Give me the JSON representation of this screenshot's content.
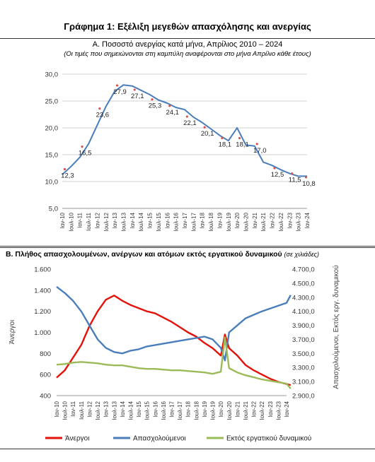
{
  "title": "Γράφημα 1: Εξέλιξη μεγεθών απασχόλησης και ανεργίας",
  "chart_data": [
    {
      "type": "line",
      "title": "Α. Ποσοστό ανεργίας κατά μήνα, Απρίλιος 2010 – 2024",
      "subtitle": "(Οι τιμές που σημειώνονται στη καμπύλη αναφέρονται στο μήνα Απρίλιο κάθε έτους)",
      "ylim": [
        5,
        30
      ],
      "yticks": [
        "5,0",
        "10,0",
        "15,0",
        "20,0",
        "25,0",
        "30,0"
      ],
      "grid": true,
      "x_categories": [
        "Ιαν-10",
        "Ιουλ-10",
        "Ιαν-11",
        "Ιουλ-11",
        "Ιαν-12",
        "Ιουλ-12",
        "Ιαν-13",
        "Ιουλ-13",
        "Ιαν-14",
        "Ιουλ-14",
        "Ιαν-15",
        "Ιουλ-15",
        "Ιαν-16",
        "Ιουλ-16",
        "Ιαν-17",
        "Ιουλ-17",
        "Ιαν-18",
        "Ιουλ-18",
        "Ιαν-19",
        "Ιουλ-19",
        "Ιαν-20",
        "Ιουλ-20",
        "Ιαν-21",
        "Ιουλ-21",
        "Ιαν-22",
        "Ιουλ-22",
        "Ιαν-23",
        "Ιουλ-23",
        "Ιαν-24"
      ],
      "series": [
        {
          "color": "#4a7ebb",
          "x": [
            0,
            1,
            2,
            3,
            4,
            5,
            6,
            7,
            8,
            9,
            10,
            11,
            12,
            13,
            14,
            15,
            16,
            17,
            18,
            19,
            20,
            21,
            22,
            23,
            24,
            25,
            26,
            27,
            28
          ],
          "values": [
            11.3,
            12.8,
            14.5,
            17.0,
            20.5,
            24.0,
            26.8,
            28.0,
            27.8,
            27.0,
            26.2,
            25.2,
            24.6,
            23.8,
            23.4,
            22.0,
            21.0,
            19.8,
            18.6,
            17.6,
            20.0,
            16.8,
            16.6,
            13.6,
            13.0,
            12.2,
            11.5,
            11.0,
            11.0
          ]
        }
      ],
      "labels": [
        {
          "x": 0.6,
          "value": 12.3,
          "text": "12,3"
        },
        {
          "x": 2.6,
          "value": 16.5,
          "text": "16,5"
        },
        {
          "x": 4.6,
          "value": 23.6,
          "text": "23,6"
        },
        {
          "x": 6.6,
          "value": 27.9,
          "text": "27,9"
        },
        {
          "x": 8.6,
          "value": 27.1,
          "text": "27,1"
        },
        {
          "x": 10.6,
          "value": 25.3,
          "text": "25,3"
        },
        {
          "x": 12.6,
          "value": 24.1,
          "text": "24,1"
        },
        {
          "x": 14.6,
          "value": 22.1,
          "text": "22,1"
        },
        {
          "x": 16.6,
          "value": 20.1,
          "text": "20,1"
        },
        {
          "x": 18.6,
          "value": 18.1,
          "text": "18,1"
        },
        {
          "x": 20.6,
          "value": 18.1,
          "text": "18,1"
        },
        {
          "x": 22.6,
          "value": 17.0,
          "text": "17,0"
        },
        {
          "x": 24.6,
          "value": 12.5,
          "text": "12,5"
        },
        {
          "x": 26.6,
          "value": 11.5,
          "text": "11,5"
        },
        {
          "x": 28.2,
          "value": 10.8,
          "text": "10,8"
        }
      ]
    },
    {
      "type": "line",
      "title": "Β. Πλήθος απασχολουμένων, ανέργων και ατόμων εκτός εργατικού δυναμικού",
      "unit_note": "(σε χιλιάδες)",
      "ylabel_left": "Άνεργοι",
      "ylabel_right": "Απασχολούμενοι, Εκτός εργ. δυναμικού",
      "ylim_left": [
        400,
        1600
      ],
      "yticks_left": [
        "400",
        "600",
        "800",
        "1.000",
        "1.200",
        "1.400",
        "1.600"
      ],
      "ylim_right": [
        2900,
        4700
      ],
      "yticks_right": [
        "2.900,0",
        "3.100,0",
        "3.300,0",
        "3.500,0",
        "3.700,0",
        "3.900,0",
        "4.100,0",
        "4.300,0",
        "4.500,0",
        "4.700,0"
      ],
      "x_categories": [
        "Ιαν-10",
        "Ιουλ-10",
        "Ιαν-11",
        "Ιουλ-11",
        "Ιαν-12",
        "Ιουλ-12",
        "Ιαν-13",
        "Ιουλ-13",
        "Ιαν-14",
        "Ιουλ-14",
        "Ιαν-15",
        "Ιουλ-15",
        "Ιαν-16",
        "Ιουλ-16",
        "Ιαν-17",
        "Ιουλ-17",
        "Ιαν-18",
        "Ιουλ-18",
        "Ιαν-19",
        "Ιουλ-19",
        "Ιαν-20",
        "Ιουλ-20",
        "Ιαν-21",
        "Ιουλ-21",
        "Ιαν-22",
        "Ιουλ-22",
        "Ιαν-23",
        "Ιουλ-23",
        "Ιαν-24"
      ],
      "series": [
        {
          "name": "Άνεργοι",
          "color": "#e3120b",
          "axis": "left",
          "x": [
            0,
            1,
            2,
            3,
            4,
            5,
            6,
            7,
            8,
            9,
            10,
            11,
            12,
            13,
            14,
            15,
            16,
            17,
            18,
            19,
            20,
            20.5,
            21,
            22,
            23,
            24,
            25,
            26,
            27,
            28,
            28.5
          ],
          "values": [
            570,
            640,
            760,
            880,
            1060,
            1200,
            1310,
            1350,
            1300,
            1260,
            1230,
            1200,
            1180,
            1140,
            1100,
            1050,
            1000,
            960,
            900,
            850,
            780,
            980,
            850,
            780,
            690,
            640,
            600,
            560,
            530,
            510,
            500
          ]
        },
        {
          "name": "Απασχολούμενοι",
          "color": "#4a7ebb",
          "axis": "right",
          "x": [
            0,
            1,
            2,
            3,
            4,
            5,
            6,
            7,
            8,
            9,
            10,
            11,
            12,
            13,
            14,
            15,
            16,
            17,
            18,
            19,
            20,
            20.5,
            21,
            22,
            23,
            24,
            25,
            26,
            27,
            28,
            28.5
          ],
          "values": [
            4450,
            4360,
            4250,
            4100,
            3900,
            3700,
            3580,
            3520,
            3500,
            3540,
            3560,
            3600,
            3620,
            3640,
            3660,
            3680,
            3700,
            3720,
            3740,
            3700,
            3580,
            3400,
            3800,
            3900,
            4000,
            4050,
            4100,
            4140,
            4180,
            4220,
            4330
          ]
        },
        {
          "name": "Εκτός εργατικού δυναμικού",
          "color": "#9bbb59",
          "axis": "right",
          "x": [
            0,
            1,
            2,
            3,
            4,
            5,
            6,
            7,
            8,
            9,
            10,
            11,
            12,
            13,
            14,
            15,
            16,
            17,
            18,
            19,
            20,
            20.5,
            21,
            22,
            23,
            24,
            25,
            26,
            27,
            28,
            28.5
          ],
          "values": [
            3340,
            3350,
            3370,
            3380,
            3370,
            3360,
            3340,
            3330,
            3330,
            3310,
            3290,
            3280,
            3280,
            3270,
            3260,
            3260,
            3250,
            3240,
            3230,
            3210,
            3240,
            3730,
            3290,
            3230,
            3190,
            3160,
            3130,
            3110,
            3090,
            3070,
            3000
          ]
        }
      ],
      "legend_position": "bottom"
    }
  ]
}
